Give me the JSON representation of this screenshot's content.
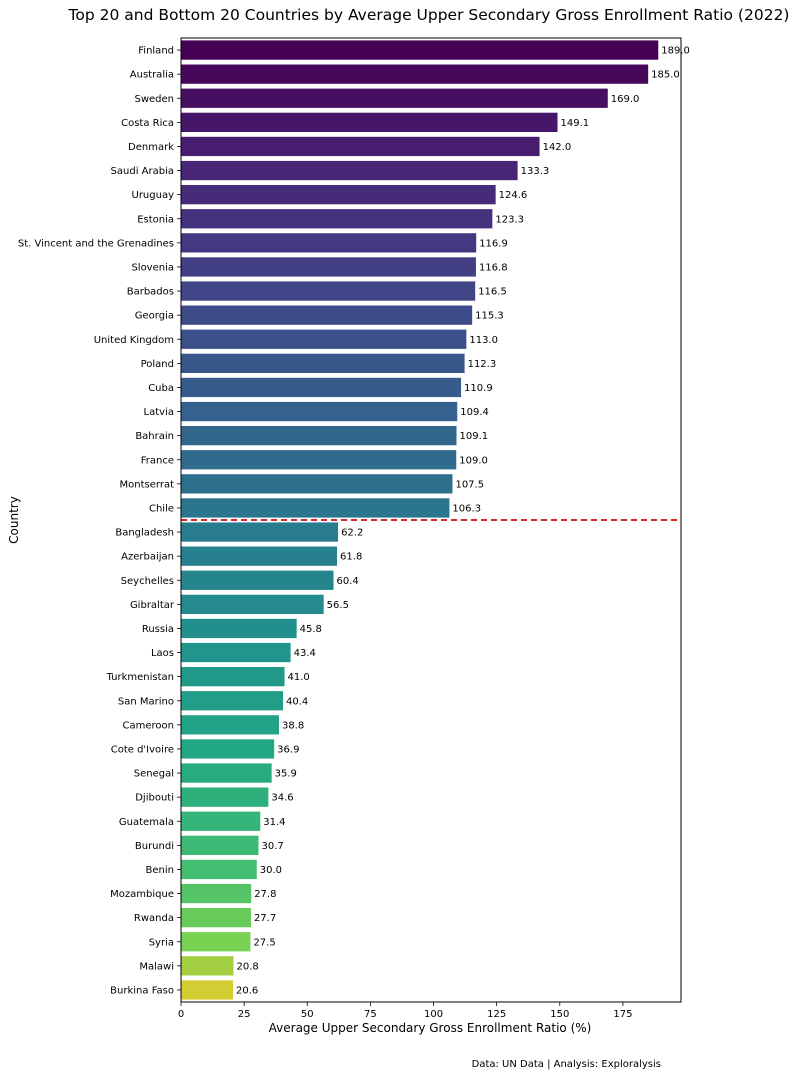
{
  "chart_data": {
    "type": "bar",
    "orientation": "horizontal",
    "title": "Top 20 and Bottom 20 Countries by Average Upper Secondary Gross Enrollment Ratio (2022)",
    "xlabel": "Average Upper Secondary Gross Enrollment Ratio (%)",
    "ylabel": "Country",
    "xlim": [
      0,
      198
    ],
    "xticks": [
      0,
      25,
      50,
      75,
      100,
      125,
      150,
      175
    ],
    "grid": false,
    "colormap": "viridis",
    "separator_color": "#d62728",
    "categories": [
      "Finland",
      "Australia",
      "Sweden",
      "Costa Rica",
      "Denmark",
      "Saudi Arabia",
      "Uruguay",
      "Estonia",
      "St. Vincent and the Grenadines",
      "Slovenia",
      "Barbados",
      "Georgia",
      "United Kingdom",
      "Poland",
      "Cuba",
      "Latvia",
      "Bahrain",
      "France",
      "Montserrat",
      "Chile",
      "Bangladesh",
      "Azerbaijan",
      "Seychelles",
      "Gibraltar",
      "Russia",
      "Laos",
      "Turkmenistan",
      "San Marino",
      "Cameroon",
      "Cote d'Ivoire",
      "Senegal",
      "Djibouti",
      "Guatemala",
      "Burundi",
      "Benin",
      "Mozambique",
      "Rwanda",
      "Syria",
      "Malawi",
      "Burkina Faso"
    ],
    "values": [
      189.0,
      185.0,
      169.0,
      149.1,
      142.0,
      133.3,
      124.6,
      123.3,
      116.9,
      116.8,
      116.5,
      115.3,
      113.0,
      112.3,
      110.9,
      109.4,
      109.1,
      109.0,
      107.5,
      106.3,
      62.2,
      61.8,
      60.4,
      56.5,
      45.8,
      43.4,
      41.0,
      40.4,
      38.8,
      36.9,
      35.9,
      34.6,
      31.4,
      30.7,
      30.0,
      27.8,
      27.7,
      27.5,
      20.8,
      20.6
    ],
    "value_labels": [
      "189.0",
      "185.0",
      "169.0",
      "149.1",
      "142.0",
      "133.3",
      "124.6",
      "123.3",
      "116.9",
      "116.8",
      "116.5",
      "115.3",
      "113.0",
      "112.3",
      "110.9",
      "109.4",
      "109.1",
      "109.0",
      "107.5",
      "106.3",
      "62.2",
      "61.8",
      "60.4",
      "56.5",
      "45.8",
      "43.4",
      "41.0",
      "40.4",
      "38.8",
      "36.9",
      "35.9",
      "34.6",
      "31.4",
      "30.7",
      "30.0",
      "27.8",
      "27.7",
      "27.5",
      "20.8",
      "20.6"
    ],
    "annotation": "Data: UN Data | Analysis: Exploralysis"
  }
}
